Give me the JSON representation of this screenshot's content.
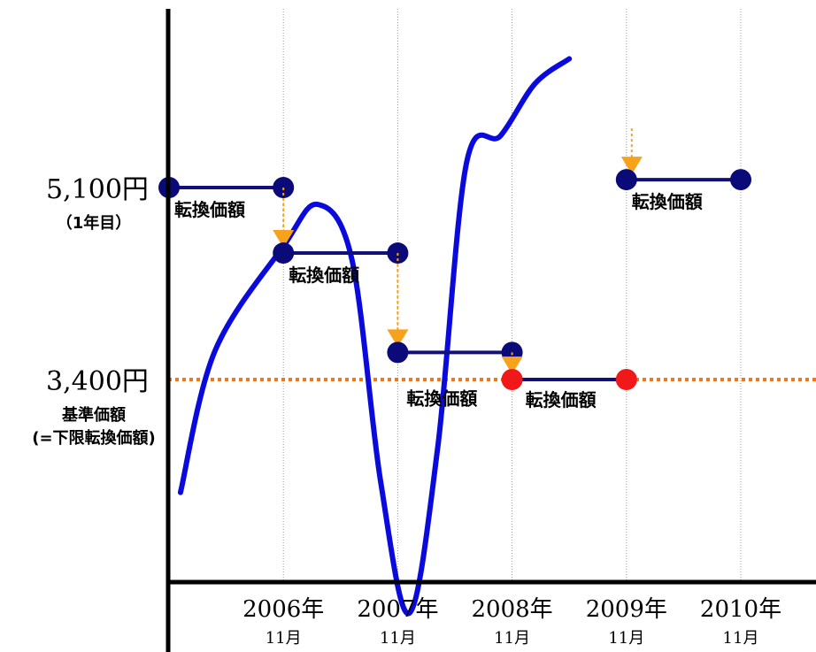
{
  "chart_data": {
    "type": "line",
    "x_ticks": [
      {
        "year": "2006年",
        "month": "11月"
      },
      {
        "year": "2007年",
        "month": "11月"
      },
      {
        "year": "2008年",
        "month": "11月"
      },
      {
        "year": "2009年",
        "month": "11月"
      },
      {
        "year": "2010年",
        "month": "11月"
      }
    ],
    "y_labels": [
      {
        "value": 5100,
        "text": "5,100円",
        "sub": [
          "（1年目）"
        ]
      },
      {
        "value": 3400,
        "text": "3,400円",
        "sub": [
          "基準価額",
          "(=下限転換価額)"
        ]
      }
    ],
    "reference_line": {
      "value": 3400,
      "color": "#f07818",
      "style": "dotted"
    },
    "price_curve": {
      "color": "#0a0adc",
      "points": [
        [
          2006.0,
          2400
        ],
        [
          2006.3,
          3650
        ],
        [
          2006.9,
          4580
        ],
        [
          2007.2,
          4950
        ],
        [
          2007.5,
          4460
        ],
        [
          2007.75,
          2500
        ],
        [
          2008.0,
          1330
        ],
        [
          2008.25,
          2800
        ],
        [
          2008.5,
          5310
        ],
        [
          2008.8,
          5560
        ],
        [
          2009.1,
          6020
        ],
        [
          2009.4,
          6240
        ]
      ]
    },
    "conversion_price_segments": [
      {
        "from": 2005.9,
        "to": 2006.9,
        "value": 5100,
        "label": "転換価額",
        "dot_color": "#0a0a78",
        "adjusted": false
      },
      {
        "from": 2006.9,
        "to": 2007.9,
        "value": 4520,
        "label": "転換価額",
        "dot_color": "#0a0a78",
        "adjusted": true
      },
      {
        "from": 2007.9,
        "to": 2008.9,
        "value": 3640,
        "label": "転換価額",
        "dot_color": "#0a0a78",
        "adjusted": true
      },
      {
        "from": 2008.9,
        "to": 2009.9,
        "value": 3400,
        "label": "転換価額",
        "dot_color": "#f01818",
        "adjusted": true
      },
      {
        "from": 2009.9,
        "to": 2010.9,
        "value": 5170,
        "label": "転換価額",
        "dot_color": "#0a0a78",
        "adjusted": true
      }
    ],
    "colors": {
      "segment_line": "#101078",
      "adjust_arrow": "#f7a21b",
      "axis": "#000000",
      "gridline": "#999999"
    },
    "grid": "vertical-dotted"
  }
}
